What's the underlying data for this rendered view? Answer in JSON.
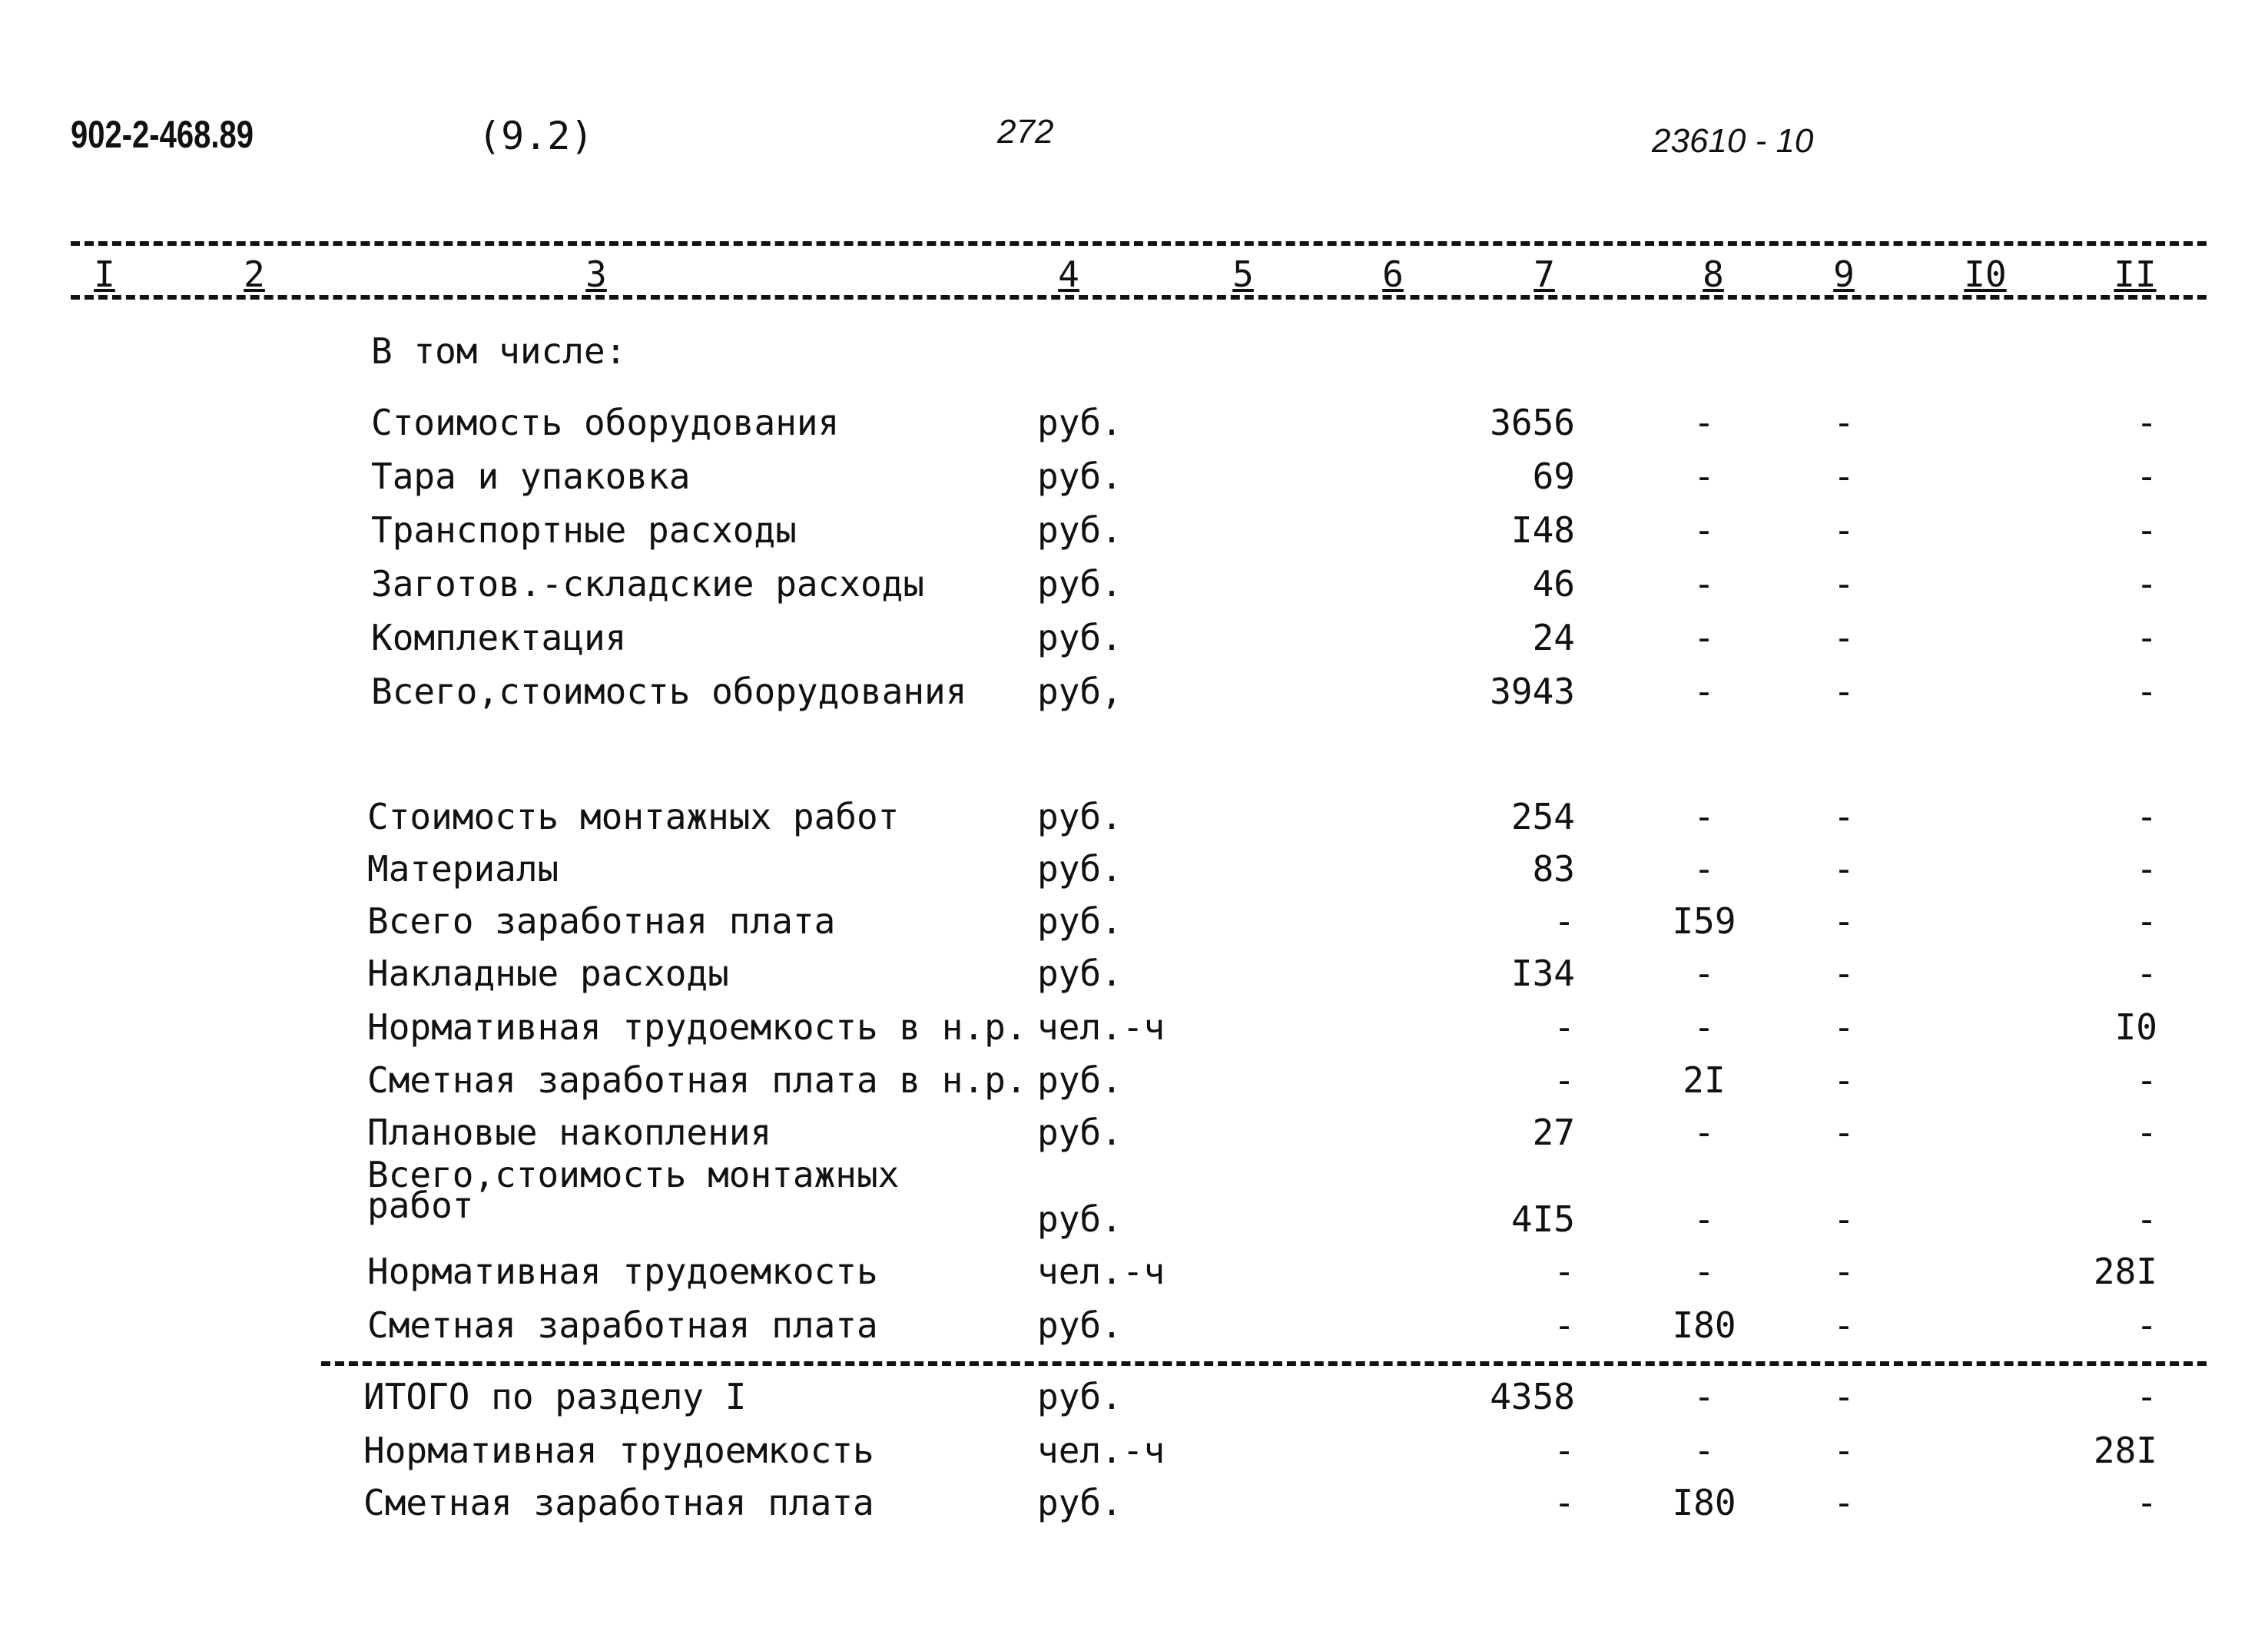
{
  "header": {
    "doc_code": "902-2-468.89",
    "section": "(9.2)",
    "page": "272",
    "inventory": "23610 - 10"
  },
  "columns": [
    "I",
    "2",
    "3",
    "4",
    "5",
    "6",
    "7",
    "8",
    "9",
    "I0",
    "II"
  ],
  "subheading": "В том числе:",
  "rows": [
    {
      "label": "Стоимость оборудования",
      "unit": "руб.",
      "c7": "3656",
      "c8": "-",
      "c9": "-",
      "c11": "-"
    },
    {
      "label": "Тара и упаковка",
      "unit": "руб.",
      "c7": "69",
      "c8": "-",
      "c9": "-",
      "c11": "-"
    },
    {
      "label": "Транспортные расходы",
      "unit": "руб.",
      "c7": "I48",
      "c8": "-",
      "c9": "-",
      "c11": "-"
    },
    {
      "label": "Заготов.-складские расходы",
      "unit": "руб.",
      "c7": "46",
      "c8": "-",
      "c9": "-",
      "c11": "-"
    },
    {
      "label": "Комплектация",
      "unit": "руб.",
      "c7": "24",
      "c8": "-",
      "c9": "-",
      "c11": "-"
    },
    {
      "label": "Всего,стоимость оборудования",
      "unit": "руб,",
      "c7": "3943",
      "c8": "-",
      "c9": "-",
      "c11": "-"
    },
    {
      "label": "Стоимость монтажных работ",
      "unit": "руб.",
      "c7": "254",
      "c8": "-",
      "c9": "-",
      "c11": "-"
    },
    {
      "label": "Материалы",
      "unit": "руб.",
      "c7": "83",
      "c8": "-",
      "c9": "-",
      "c11": "-"
    },
    {
      "label": "Всего заработная плата",
      "unit": "руб.",
      "c7": "-",
      "c8": "I59",
      "c9": "-",
      "c11": "-"
    },
    {
      "label": "Накладные расходы",
      "unit": "руб.",
      "c7": "I34",
      "c8": "-",
      "c9": "-",
      "c11": "-"
    },
    {
      "label": "Нормативная трудоемкость в н.р.",
      "unit": "чел.-ч",
      "c7": "-",
      "c8": "-",
      "c9": "-",
      "c11": "I0"
    },
    {
      "label": "Сметная заработная плата в н.р.",
      "unit": "руб.",
      "c7": "-",
      "c8": "2I",
      "c9": "-",
      "c11": "-"
    },
    {
      "label": "Плановые накопления",
      "unit": "руб.",
      "c7": "27",
      "c8": "-",
      "c9": "-",
      "c11": "-"
    },
    {
      "label": "Всего,стоимость монтажных",
      "label2": "работ",
      "unit": "руб.",
      "c7": "4I5",
      "c8": "-",
      "c9": "-",
      "c11": "-"
    },
    {
      "label": "Нормативная трудоемкость",
      "unit": "чел.-ч",
      "c7": "-",
      "c8": "-",
      "c9": "-",
      "c11": "28I"
    },
    {
      "label": "Сметная заработная плата",
      "unit": "руб.",
      "c7": "-",
      "c8": "I80",
      "c9": "-",
      "c11": "-"
    },
    {
      "label": "ИТОГО по разделу I",
      "unit": "руб.",
      "c7": "4358",
      "c8": "-",
      "c9": "-",
      "c11": "-"
    },
    {
      "label": "Нормативная трудоемкость",
      "unit": "чел.-ч",
      "c7": "-",
      "c8": "-",
      "c9": "-",
      "c11": "28I"
    },
    {
      "label": "Сметная заработная плата",
      "unit": "руб.",
      "c7": "-",
      "c8": "I80",
      "c9": "-",
      "c11": "-"
    }
  ]
}
